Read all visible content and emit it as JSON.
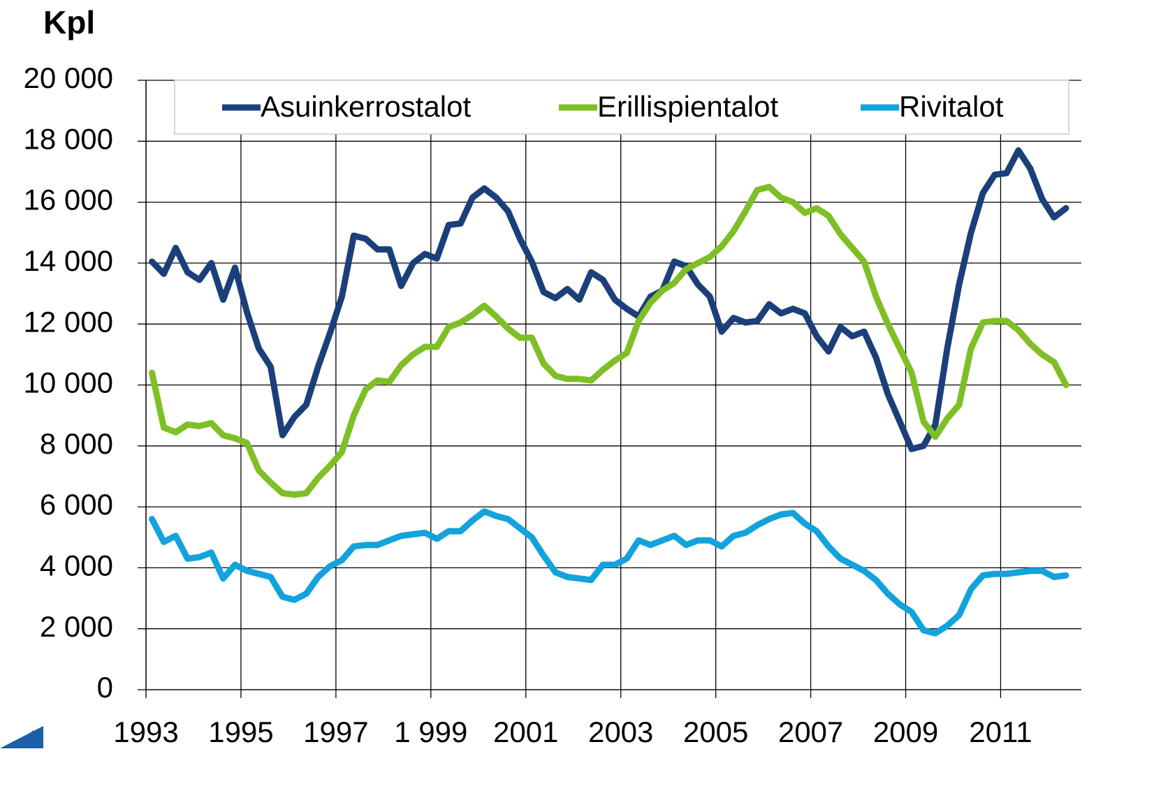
{
  "chart_data": {
    "type": "line",
    "y_label": "Kpl",
    "x": [
      1993.125,
      1993.375,
      1993.625,
      1993.875,
      1994.125,
      1994.375,
      1994.625,
      1994.875,
      1995.125,
      1995.375,
      1995.625,
      1995.875,
      1996.125,
      1996.375,
      1996.625,
      1996.875,
      1997.125,
      1997.375,
      1997.625,
      1997.875,
      1998.125,
      1998.375,
      1998.625,
      1998.875,
      1999.125,
      1999.375,
      1999.625,
      1999.875,
      2000.125,
      2000.375,
      2000.625,
      2000.875,
      2001.125,
      2001.375,
      2001.625,
      2001.875,
      2002.125,
      2002.375,
      2002.625,
      2002.875,
      2003.125,
      2003.375,
      2003.625,
      2003.875,
      2004.125,
      2004.375,
      2004.625,
      2004.875,
      2005.125,
      2005.375,
      2005.625,
      2005.875,
      2006.125,
      2006.375,
      2006.625,
      2006.875,
      2007.125,
      2007.375,
      2007.625,
      2007.875,
      2008.125,
      2008.375,
      2008.625,
      2008.875,
      2009.125,
      2009.375,
      2009.625,
      2009.875,
      2010.125,
      2010.375,
      2010.625,
      2010.875,
      2011.125,
      2011.375,
      2011.625,
      2011.875,
      2012.125,
      2012.375
    ],
    "series": [
      {
        "name": "Asuinkerrostalot",
        "color": "#1b3f7a",
        "values": [
          14050,
          13650,
          14500,
          13700,
          13450,
          14000,
          12800,
          13850,
          12400,
          11200,
          10600,
          8350,
          8950,
          9350,
          10600,
          11700,
          12900,
          14900,
          14800,
          14450,
          14450,
          13250,
          14000,
          14300,
          14150,
          15250,
          15300,
          16150,
          16450,
          16150,
          15700,
          14800,
          14050,
          13050,
          12850,
          13150,
          12800,
          13700,
          13450,
          12800,
          12500,
          12250,
          12900,
          13100,
          14050,
          13900,
          13300,
          12900,
          11750,
          12200,
          12050,
          12100,
          12650,
          12350,
          12500,
          12350,
          11600,
          11100,
          11900,
          11600,
          11750,
          10900,
          9700,
          8800,
          7900,
          8000,
          8700,
          11200,
          13300,
          15000,
          16300,
          16900,
          16950,
          17700,
          17100,
          16100,
          15500,
          15800
        ]
      },
      {
        "name": "Erillispientalot",
        "color": "#7fbf26",
        "values": [
          10400,
          8600,
          8450,
          8700,
          8650,
          8750,
          8350,
          8250,
          8100,
          7200,
          6800,
          6450,
          6400,
          6450,
          6950,
          7350,
          7800,
          9000,
          9850,
          10150,
          10100,
          10650,
          11000,
          11250,
          11250,
          11900,
          12050,
          12300,
          12600,
          12250,
          11850,
          11550,
          11550,
          10700,
          10300,
          10200,
          10200,
          10150,
          10500,
          10800,
          11050,
          12100,
          12700,
          13100,
          13350,
          13800,
          14000,
          14200,
          14550,
          15050,
          15700,
          16400,
          16500,
          16150,
          16000,
          15650,
          15800,
          15550,
          14950,
          14500,
          14050,
          12900,
          12000,
          11200,
          10400,
          8800,
          8300,
          8900,
          9350,
          11200,
          12050,
          12100,
          12100,
          11800,
          11350,
          11000,
          10750,
          10000
        ]
      },
      {
        "name": "Rivitalot",
        "color": "#12a3dc",
        "values": [
          5600,
          4850,
          5050,
          4300,
          4350,
          4500,
          3650,
          4100,
          3900,
          3800,
          3700,
          3050,
          2950,
          3150,
          3700,
          4050,
          4250,
          4700,
          4750,
          4750,
          4900,
          5050,
          5100,
          5150,
          4950,
          5200,
          5200,
          5550,
          5850,
          5700,
          5600,
          5300,
          5000,
          4400,
          3850,
          3700,
          3650,
          3600,
          4100,
          4100,
          4300,
          4900,
          4750,
          4900,
          5050,
          4750,
          4900,
          4900,
          4700,
          5050,
          5150,
          5400,
          5600,
          5750,
          5800,
          5450,
          5200,
          4700,
          4300,
          4100,
          3900,
          3600,
          3150,
          2800,
          2550,
          1950,
          1850,
          2100,
          2450,
          3300,
          3750,
          3800,
          3800,
          3850,
          3900,
          3900,
          3700,
          3750
        ]
      }
    ],
    "xlim": [
      1993,
      2012.7
    ],
    "xticks": [
      1993,
      1995,
      1997,
      {
        "value": 1999,
        "label": "1 999"
      },
      2001,
      2003,
      2005,
      2007,
      2009,
      2011
    ],
    "ylim": [
      0,
      20000
    ],
    "yticks": [
      0,
      {
        "value": 2000,
        "label": "2 000"
      },
      {
        "value": 4000,
        "label": "4 000"
      },
      {
        "value": 6000,
        "label": "6 000"
      },
      {
        "value": 8000,
        "label": "8 000"
      },
      {
        "value": 10000,
        "label": "10 000"
      },
      {
        "value": 12000,
        "label": "12 000"
      },
      {
        "value": 14000,
        "label": "14 000"
      },
      {
        "value": 16000,
        "label": "16 000"
      },
      {
        "value": 18000,
        "label": "18 000"
      },
      {
        "value": 20000,
        "label": "20 000"
      }
    ],
    "grid": true,
    "legend": "top"
  }
}
